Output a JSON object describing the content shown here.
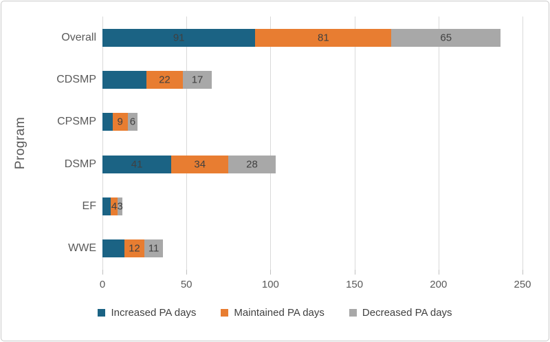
{
  "figure": {
    "y_axis_title": "Program"
  },
  "chart_data": {
    "type": "bar",
    "orientation": "horizontal-stacked",
    "title": "",
    "xlabel": "",
    "ylabel": "Program",
    "xlim": [
      0,
      250
    ],
    "x_ticks": [
      0,
      50,
      100,
      150,
      200,
      250
    ],
    "grid": "vertical-on",
    "legend_position": "bottom",
    "categories": [
      "Overall",
      "CDSMP",
      "CPSMP",
      "DSMP",
      "EF",
      "WWE"
    ],
    "series": [
      {
        "name": "Increased PA days",
        "color": "#1b6384",
        "values": [
          91,
          26,
          6,
          41,
          5,
          13
        ],
        "visible_labels": [
          "91",
          "",
          "",
          "41",
          "",
          ""
        ]
      },
      {
        "name": "Maintained PA days",
        "color": "#e87d31",
        "values": [
          81,
          22,
          9,
          34,
          4,
          12
        ],
        "visible_labels": [
          "81",
          "22",
          "9",
          "34",
          "4",
          "12"
        ]
      },
      {
        "name": "Decreased PA days",
        "color": "#a8a8a8",
        "values": [
          65,
          17,
          6,
          28,
          3,
          11
        ],
        "visible_labels": [
          "65",
          "17",
          "6",
          "28",
          "3",
          "11"
        ]
      }
    ],
    "style": {
      "gridline_color": "#d9d9d9",
      "tick_color": "#bfbfbf",
      "axis_text_color": "#595959",
      "data_label_color": "#404040",
      "border_color": "#c9c9c9"
    }
  }
}
